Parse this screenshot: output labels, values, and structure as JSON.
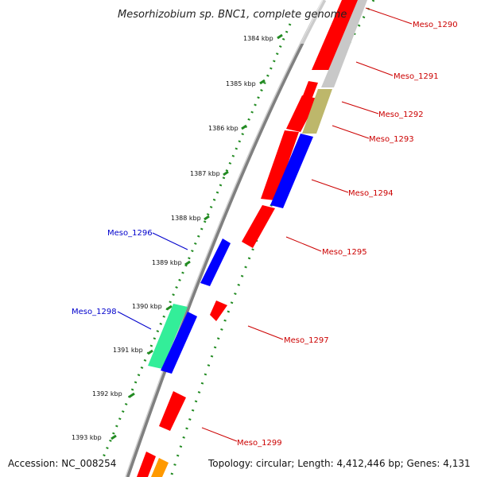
{
  "title": "Mesorhizobium sp. BNC1, complete genome",
  "accession": "Accession: NC_008254",
  "summary": "Topology: circular; Length: 4,412,446 bp; Genes: 4,131",
  "colors": {
    "forward_label": "#cc0000",
    "reverse_label": "#0000cc",
    "backbone": "#808080",
    "ticks": "#228b22"
  },
  "scale_labels": [
    {
      "label": "1384 kbp"
    },
    {
      "label": "1385 kbp"
    },
    {
      "label": "1386 kbp"
    },
    {
      "label": "1387 kbp"
    },
    {
      "label": "1388 kbp"
    },
    {
      "label": "1389 kbp"
    },
    {
      "label": "1390 kbp"
    },
    {
      "label": "1391 kbp"
    },
    {
      "label": "1392 kbp"
    },
    {
      "label": "1393 kbp"
    }
  ],
  "gene_labels": [
    {
      "label": "Meso_1290",
      "strand": "forward"
    },
    {
      "label": "Meso_1291",
      "strand": "forward"
    },
    {
      "label": "Meso_1292",
      "strand": "forward"
    },
    {
      "label": "Meso_1293",
      "strand": "forward"
    },
    {
      "label": "Meso_1294",
      "strand": "forward"
    },
    {
      "label": "Meso_1295",
      "strand": "forward"
    },
    {
      "label": "Meso_1296",
      "strand": "reverse"
    },
    {
      "label": "Meso_1297",
      "strand": "forward"
    },
    {
      "label": "Meso_1298",
      "strand": "reverse"
    },
    {
      "label": "Meso_1299",
      "strand": "forward"
    }
  ]
}
